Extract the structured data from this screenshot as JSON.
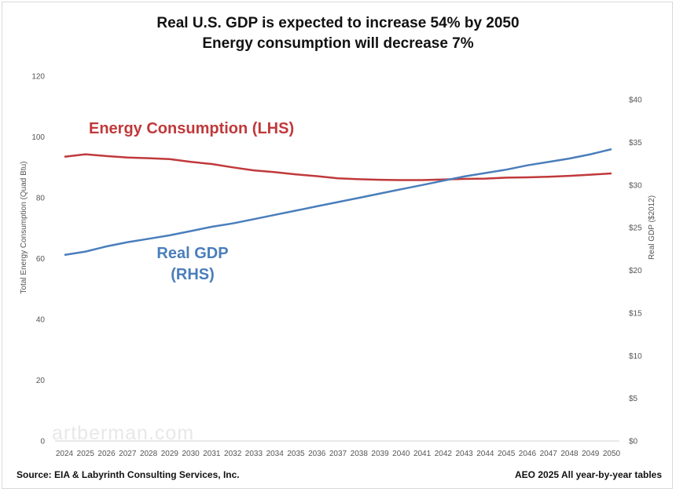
{
  "chart_data": {
    "type": "line",
    "title": "Real U.S. GDP is expected to increase 54% by 2050",
    "subtitle": "Energy consumption will decrease 7%",
    "x": [
      "2024",
      "2025",
      "2026",
      "2027",
      "2028",
      "2029",
      "2030",
      "2031",
      "2032",
      "2033",
      "2034",
      "2035",
      "2036",
      "2037",
      "2038",
      "2039",
      "2040",
      "2041",
      "2042",
      "2043",
      "2044",
      "2045",
      "2046",
      "2047",
      "2048",
      "2049",
      "2050"
    ],
    "ylabel_left": "Total Energy Consumption (Quad Btu)",
    "ylabel_right": "Real GDP ($2012)",
    "ylim_left": [
      0,
      120
    ],
    "ylim_right": [
      0,
      40
    ],
    "yticks_left": [
      "0",
      "20",
      "40",
      "60",
      "80",
      "100",
      "120"
    ],
    "yticks_right": [
      "$0",
      "$5",
      "$10",
      "$15",
      "$20",
      "$25",
      "$30",
      "$35",
      "$40"
    ],
    "series": [
      {
        "name": "Energy Consumption (LHS)",
        "axis": "left",
        "color": "#c0393b",
        "values": [
          93.5,
          94.3,
          93.7,
          93.2,
          93.0,
          92.7,
          91.8,
          91.1,
          90.0,
          89.0,
          88.4,
          87.7,
          87.1,
          86.4,
          86.1,
          85.9,
          85.8,
          85.8,
          86.0,
          86.2,
          86.3,
          86.6,
          86.7,
          86.9,
          87.2,
          87.6,
          88.0
        ]
      },
      {
        "name": "Real GDP",
        "name_line2": "(RHS)",
        "axis": "right",
        "color": "#4a7ebb",
        "values": [
          21.8,
          22.2,
          22.8,
          23.3,
          23.7,
          24.1,
          24.6,
          25.1,
          25.5,
          26.0,
          26.5,
          27.0,
          27.5,
          28.0,
          28.5,
          29.0,
          29.5,
          30.0,
          30.5,
          31.0,
          31.4,
          31.8,
          32.3,
          32.7,
          33.1,
          33.6,
          34.2
        ]
      }
    ],
    "grid": false,
    "legend": "inline labels"
  },
  "watermark": "artberman.com",
  "footer": {
    "source": "Source: EIA & Labyrinth Consulting Services, Inc.",
    "note": "AEO 2025 All year-by-year tables"
  }
}
